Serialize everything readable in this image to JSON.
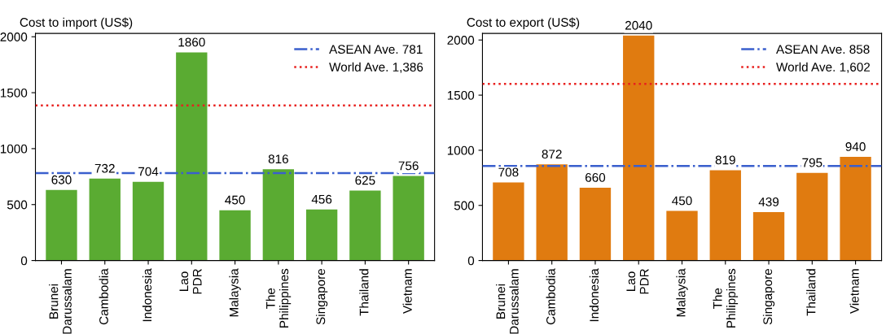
{
  "chart_data": [
    {
      "type": "bar",
      "title": "Cost to import (US$)",
      "categories": [
        "Brunei Darussalam",
        "Cambodia",
        "Indonesia",
        "Lao PDR",
        "Malaysia",
        "The Philippines",
        "Singapore",
        "Thailand",
        "Vietnam"
      ],
      "values": [
        630,
        732,
        704,
        1860,
        450,
        816,
        456,
        625,
        756
      ],
      "color": "#5aab32",
      "data_labels": true,
      "ylim": [
        0,
        2030
      ],
      "yticks": [
        0,
        500,
        1000,
        1500,
        2000
      ],
      "grid": false,
      "legend": "top right",
      "ref_lines": [
        {
          "axis": "y",
          "value": 781,
          "label": "ASEAN Ave. 781",
          "color": "#3a5fcd",
          "line_style": "dashdot"
        },
        {
          "axis": "y",
          "value": 1386,
          "label": "World Ave. 1,386",
          "color": "#e8201e",
          "line_style": "dotted"
        }
      ]
    },
    {
      "type": "bar",
      "title": "Cost to export (US$)",
      "categories": [
        "Brunei Darussalam",
        "Cambodia",
        "Indonesia",
        "Lao PDR",
        "Malaysia",
        "The Philippines",
        "Singapore",
        "Thailand",
        "Vietnam"
      ],
      "values": [
        708,
        872,
        660,
        2040,
        450,
        819,
        439,
        795,
        940
      ],
      "color": "#e07b10",
      "data_labels": true,
      "ylim": [
        0,
        2060
      ],
      "yticks": [
        0,
        500,
        1000,
        1500,
        2000
      ],
      "grid": false,
      "legend": "top right",
      "ref_lines": [
        {
          "axis": "y",
          "value": 858,
          "label": "ASEAN Ave. 858",
          "color": "#3a5fcd",
          "line_style": "dashdot"
        },
        {
          "axis": "y",
          "value": 1602,
          "label": "World Ave. 1,602",
          "color": "#e8201e",
          "line_style": "dotted"
        }
      ]
    }
  ]
}
